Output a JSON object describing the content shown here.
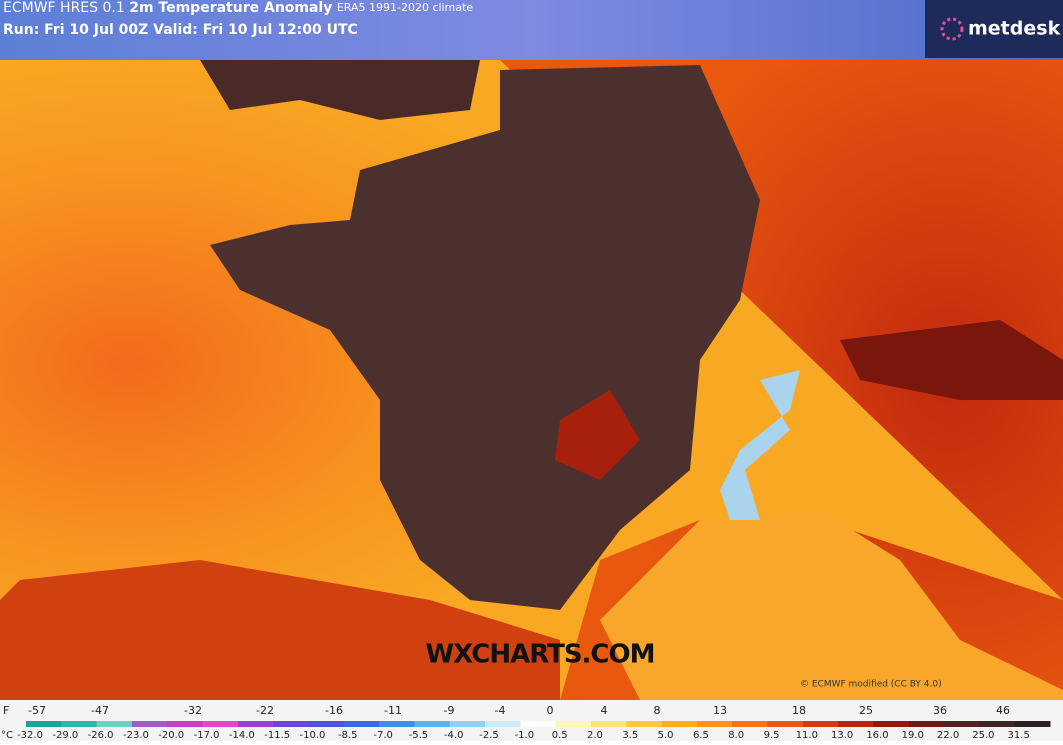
{
  "header": {
    "model": "ECMWF HRES 0.1",
    "title": "2m Temperature Anomaly",
    "climate": "ERA5 1991-2020 climate",
    "run": "Run: Fri 10 Jul 00Z Valid: Fri 10 Jul 12:00 UTC"
  },
  "logo": "metdesk",
  "watermark": "WXCHARTS.COM",
  "credit": "© ECMWF modified (CC BY 4.0)",
  "legend": {
    "f_unit": "F",
    "f_labels": [
      "-57",
      "-47",
      "-32",
      "-22",
      "-16",
      "-11",
      "-9",
      "-4",
      "0",
      "4",
      "8",
      "13",
      "18",
      "25",
      "36",
      "46"
    ],
    "c_unit": "°C",
    "c_labels": [
      "-32.0",
      "-29.0",
      "-26.0",
      "-23.0",
      "-20.0",
      "-17.0",
      "-14.0",
      "-11.5",
      "-10.0",
      "-8.5",
      "-7.0",
      "-5.5",
      "-4.0",
      "-2.5",
      "-1.0",
      "0.5",
      "2.0",
      "3.5",
      "5.0",
      "6.5",
      "8.0",
      "9.5",
      "11.0",
      "13.0",
      "16.0",
      "19.0",
      "22.0",
      "25.0",
      "31.5"
    ]
  }
}
